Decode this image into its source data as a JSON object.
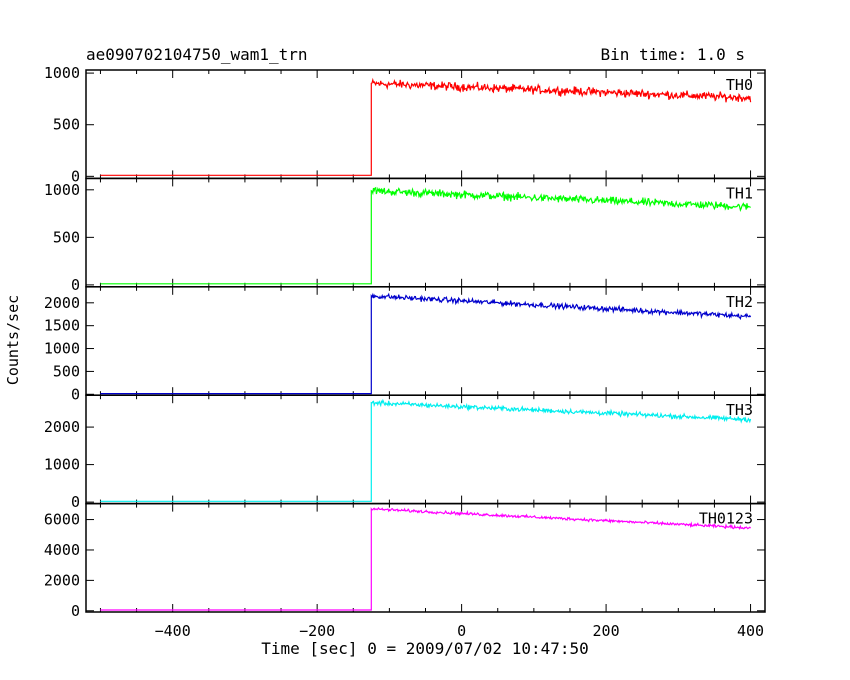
{
  "header": {
    "left_title": "ae090702104750_wam1_trn",
    "right_title": "Bin time: 1.0 s"
  },
  "chart_data": {
    "type": "line",
    "title": "ae090702104750_wam1_trn",
    "subtitle": "Bin time: 1.0 s",
    "xlabel": "Time [sec] 0 = 2009/07/02 10:47:50",
    "ylabel": "Counts/sec",
    "xlim": [
      -520,
      420
    ],
    "x_ticks": [
      -400,
      -200,
      0,
      200,
      400
    ],
    "trigger_time": -125,
    "x_end": 400,
    "panels": [
      {
        "name": "TH0",
        "color": "#ff0000",
        "ylim": [
          -20,
          1030
        ],
        "y_ticks": [
          0,
          500,
          1000
        ],
        "pre": 10,
        "peak": 900,
        "end": 760,
        "noise": 40
      },
      {
        "name": "TH1",
        "color": "#00ff00",
        "ylim": [
          -20,
          1120
        ],
        "y_ticks": [
          0,
          500,
          1000
        ],
        "pre": 12,
        "peak": 990,
        "end": 820,
        "noise": 40
      },
      {
        "name": "TH2",
        "color": "#0000cc",
        "ylim": [
          -20,
          2350
        ],
        "y_ticks": [
          0,
          500,
          1000,
          1500,
          2000
        ],
        "pre": 15,
        "peak": 2150,
        "end": 1700,
        "noise": 55
      },
      {
        "name": "TH3",
        "color": "#00eeee",
        "ylim": [
          -40,
          2850
        ],
        "y_ticks": [
          0,
          1000,
          2000
        ],
        "pre": 20,
        "peak": 2650,
        "end": 2200,
        "noise": 60
      },
      {
        "name": "TH0123",
        "color": "#ff00ff",
        "ylim": [
          -80,
          7050
        ],
        "y_ticks": [
          0,
          2000,
          4000,
          6000
        ],
        "pre": 50,
        "peak": 6700,
        "end": 5450,
        "noise": 90
      }
    ]
  }
}
